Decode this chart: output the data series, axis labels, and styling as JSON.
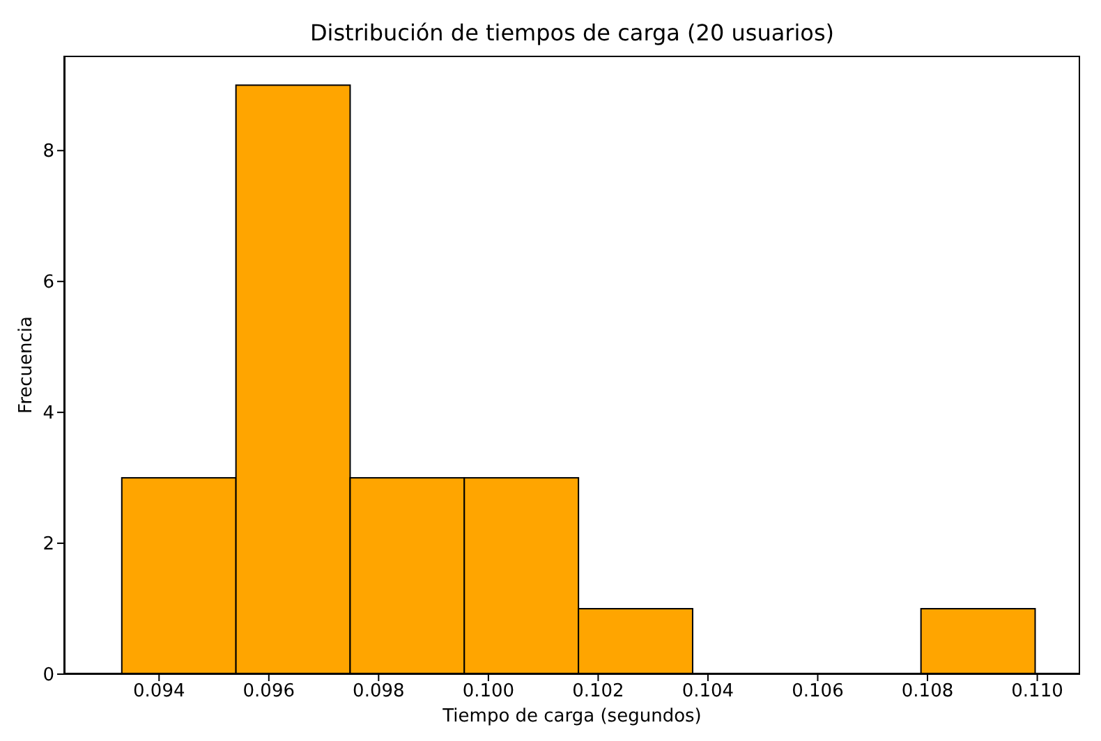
{
  "chart_data": {
    "type": "histogram",
    "title": "Distribución de tiempos de carga (20 usuarios)",
    "xlabel": "Tiempo de carga (segundos)",
    "ylabel": "Frecuencia",
    "bins": [
      0.09332,
      0.0954,
      0.09748,
      0.09956,
      0.10164,
      0.10372,
      0.1058,
      0.10788,
      0.10996
    ],
    "values": [
      3,
      9,
      3,
      3,
      1,
      0,
      0,
      1
    ],
    "color": "#ffa500",
    "xlim": [
      0.09227,
      0.11078
    ],
    "xticks": [
      0.094,
      0.096,
      0.098,
      {
        "value": 0.1,
        "label": "0.100"
      },
      0.102,
      0.104,
      0.106,
      0.108,
      {
        "value": 0.11,
        "label": "0.110"
      }
    ],
    "ylim": [
      0,
      9.45
    ],
    "yticks": [
      0,
      2,
      4,
      6,
      8
    ],
    "grid": false
  }
}
